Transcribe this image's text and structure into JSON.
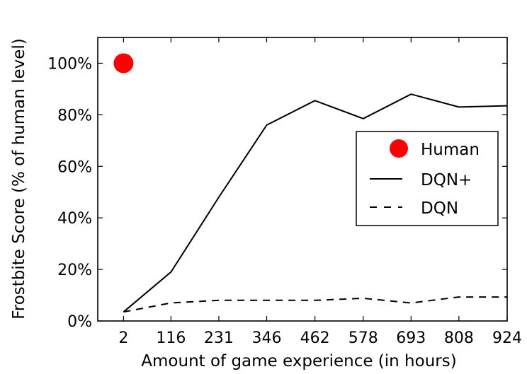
{
  "chart_data": {
    "type": "line",
    "xlabel": "Amount of game experience (in hours)",
    "ylabel": "Frostbite Score (% of human level)",
    "x_ticks": [
      "2",
      "116",
      "231",
      "346",
      "462",
      "578",
      "693",
      "808",
      "924"
    ],
    "y_ticks": [
      "0%",
      "20%",
      "40%",
      "60%",
      "80%",
      "100%"
    ],
    "xlim": [
      -60,
      924
    ],
    "ylim": [
      0,
      110
    ],
    "legend_position": "center-right",
    "series": [
      {
        "name": "Human",
        "style": "marker",
        "color": "#ff0000",
        "points": [
          [
            2,
            100
          ]
        ]
      },
      {
        "name": "DQN+",
        "style": "solid",
        "color": "#000000",
        "points": [
          [
            2,
            3.5
          ],
          [
            116,
            19
          ],
          [
            231,
            48
          ],
          [
            346,
            76
          ],
          [
            462,
            85.5
          ],
          [
            578,
            78.5
          ],
          [
            693,
            88
          ],
          [
            808,
            83
          ],
          [
            924,
            83.5
          ]
        ]
      },
      {
        "name": "DQN",
        "style": "dashed",
        "color": "#000000",
        "points": [
          [
            2,
            3.5
          ],
          [
            116,
            7
          ],
          [
            231,
            8
          ],
          [
            346,
            8
          ],
          [
            462,
            8
          ],
          [
            578,
            8.8
          ],
          [
            693,
            7
          ],
          [
            808,
            9.3
          ],
          [
            924,
            9.3
          ]
        ]
      }
    ]
  }
}
